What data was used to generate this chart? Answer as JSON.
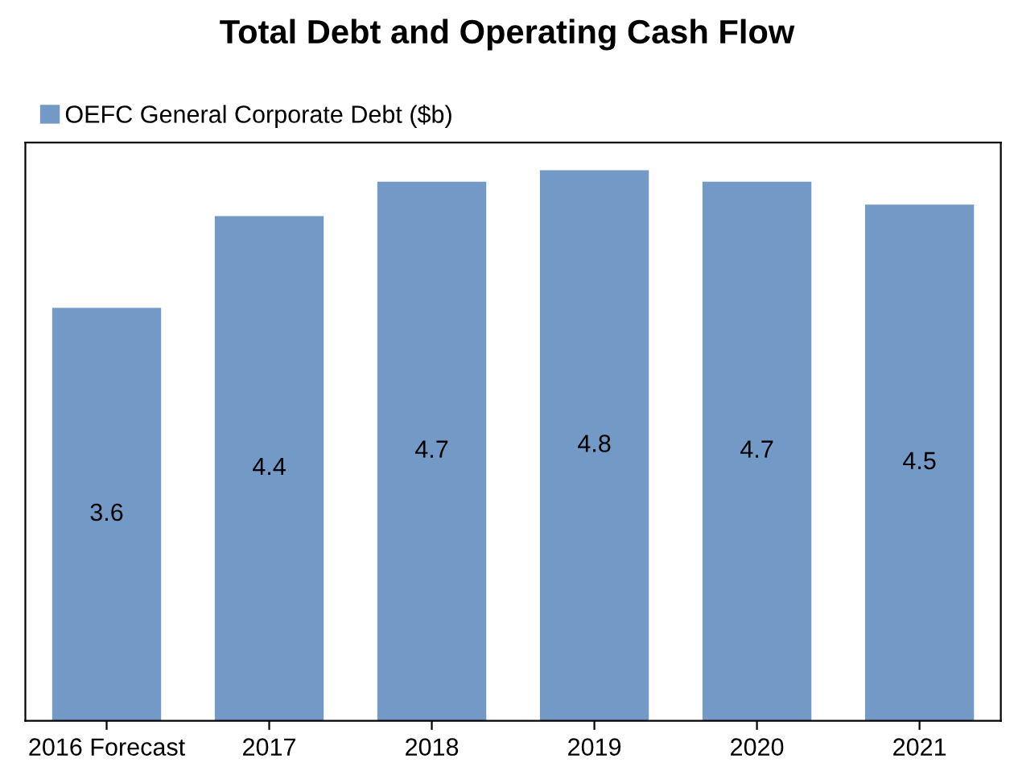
{
  "chart_data": {
    "type": "bar",
    "title": "Total Debt and Operating Cash Flow",
    "categories": [
      "2016 Forecast",
      "2017",
      "2018",
      "2019",
      "2020",
      "2021"
    ],
    "series": [
      {
        "name": "OEFC General Corporate Debt ($b)",
        "color": "#7399c6",
        "values": [
          3.6,
          4.4,
          4.7,
          4.8,
          4.7,
          4.5
        ]
      }
    ],
    "data_labels": true,
    "legend": "top left",
    "grid": false,
    "tick_labels": "x"
  }
}
